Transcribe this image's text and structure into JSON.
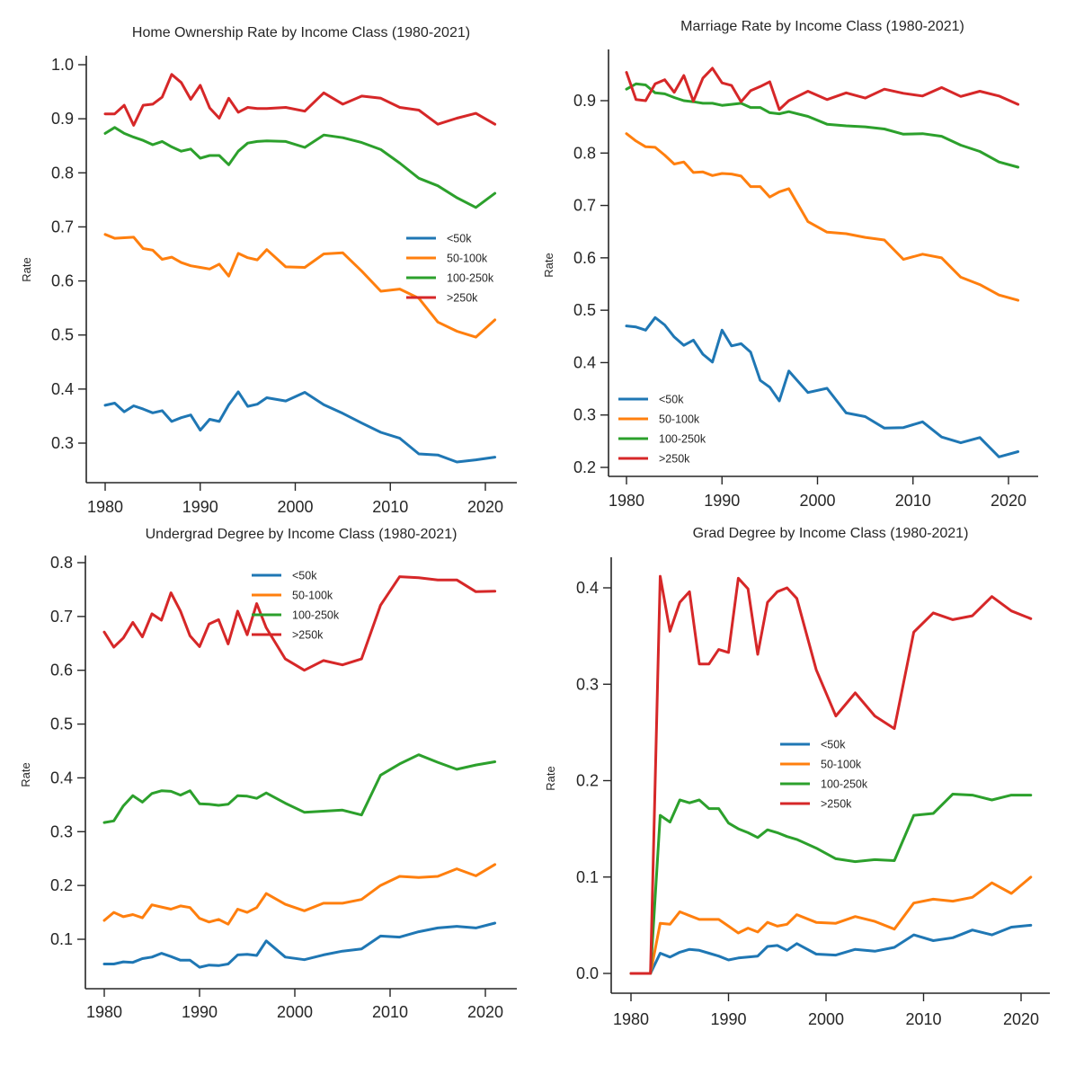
{
  "chart_data": [
    {
      "type": "line",
      "title": "Home Ownership Rate by Income Class (1980-2021)",
      "xlabel": "",
      "ylabel": "Rate",
      "xticks": [
        1980,
        1990,
        2000,
        2010,
        2020
      ],
      "yticks": [
        "0.3",
        "0.4",
        "0.5",
        "0.6",
        "0.7",
        "0.8",
        "0.9",
        "1.0"
      ],
      "legend_position": "center-right",
      "x": [
        1980,
        1981,
        1982,
        1983,
        1984,
        1985,
        1986,
        1987,
        1988,
        1989,
        1990,
        1991,
        1992,
        1993,
        1994,
        1995,
        1996,
        1997,
        1999,
        2001,
        2003,
        2005,
        2007,
        2009,
        2011,
        2013,
        2015,
        2017,
        2019,
        2021
      ],
      "series": [
        {
          "name": "<50k",
          "color": "#1f77b4",
          "values": [
            0.37,
            0.374,
            0.358,
            0.369,
            0.363,
            0.356,
            0.36,
            0.34,
            0.347,
            0.352,
            0.324,
            0.344,
            0.34,
            0.371,
            0.395,
            0.368,
            0.372,
            0.384,
            0.378,
            0.394,
            0.371,
            0.355,
            0.337,
            0.32,
            0.309,
            0.28,
            0.278,
            0.265,
            0.269,
            0.274
          ]
        },
        {
          "name": "50-100k",
          "color": "#ff7f0e",
          "values": [
            0.686,
            0.679,
            0.68,
            0.681,
            0.66,
            0.657,
            0.64,
            0.644,
            0.634,
            0.628,
            0.625,
            0.622,
            0.631,
            0.609,
            0.651,
            0.643,
            0.639,
            0.658,
            0.626,
            0.625,
            0.65,
            0.652,
            0.618,
            0.581,
            0.585,
            0.568,
            0.524,
            0.507,
            0.496,
            0.528
          ]
        },
        {
          "name": "100-250k",
          "color": "#2ca02c",
          "values": [
            0.873,
            0.884,
            0.873,
            0.866,
            0.86,
            0.852,
            0.858,
            0.848,
            0.84,
            0.844,
            0.827,
            0.832,
            0.832,
            0.815,
            0.84,
            0.855,
            0.858,
            0.859,
            0.858,
            0.847,
            0.87,
            0.865,
            0.856,
            0.843,
            0.818,
            0.79,
            0.776,
            0.754,
            0.736,
            0.762
          ]
        },
        {
          "name": ">250k",
          "color": "#d62728",
          "values": [
            0.909,
            0.909,
            0.925,
            0.888,
            0.925,
            0.927,
            0.94,
            0.982,
            0.967,
            0.936,
            0.962,
            0.92,
            0.901,
            0.938,
            0.912,
            0.921,
            0.919,
            0.919,
            0.921,
            0.914,
            0.948,
            0.927,
            0.942,
            0.938,
            0.921,
            0.916,
            0.89,
            0.901,
            0.91,
            0.89
          ]
        }
      ]
    },
    {
      "type": "line",
      "title": "Marriage Rate by Income Class (1980-2021)",
      "xlabel": "",
      "ylabel": "Rate",
      "xticks": [
        1980,
        1990,
        2000,
        2010,
        2020
      ],
      "yticks": [
        "0.2",
        "0.3",
        "0.4",
        "0.5",
        "0.6",
        "0.7",
        "0.8",
        "0.9"
      ],
      "legend_position": "lower-left",
      "x": [
        1980,
        1981,
        1982,
        1983,
        1984,
        1985,
        1986,
        1987,
        1988,
        1989,
        1990,
        1991,
        1992,
        1993,
        1994,
        1995,
        1996,
        1997,
        1999,
        2001,
        2003,
        2005,
        2007,
        2009,
        2011,
        2013,
        2015,
        2017,
        2019,
        2021
      ],
      "series": [
        {
          "name": "<50k",
          "color": "#1f77b4",
          "values": [
            0.47,
            0.468,
            0.462,
            0.486,
            0.472,
            0.449,
            0.433,
            0.443,
            0.416,
            0.401,
            0.462,
            0.432,
            0.436,
            0.42,
            0.366,
            0.353,
            0.327,
            0.384,
            0.343,
            0.351,
            0.304,
            0.297,
            0.275,
            0.276,
            0.287,
            0.258,
            0.247,
            0.257,
            0.22,
            0.23
          ]
        },
        {
          "name": "50-100k",
          "color": "#ff7f0e",
          "values": [
            0.837,
            0.823,
            0.812,
            0.811,
            0.796,
            0.779,
            0.783,
            0.763,
            0.764,
            0.757,
            0.761,
            0.76,
            0.756,
            0.736,
            0.736,
            0.716,
            0.726,
            0.732,
            0.669,
            0.649,
            0.646,
            0.639,
            0.634,
            0.597,
            0.607,
            0.6,
            0.563,
            0.549,
            0.529,
            0.519
          ]
        },
        {
          "name": "100-250k",
          "color": "#2ca02c",
          "values": [
            0.922,
            0.932,
            0.93,
            0.915,
            0.913,
            0.906,
            0.9,
            0.898,
            0.895,
            0.895,
            0.891,
            0.893,
            0.895,
            0.887,
            0.887,
            0.877,
            0.875,
            0.879,
            0.87,
            0.855,
            0.852,
            0.85,
            0.846,
            0.836,
            0.837,
            0.832,
            0.815,
            0.803,
            0.783,
            0.773
          ]
        },
        {
          "name": ">250k",
          "color": "#d62728",
          "values": [
            0.954,
            0.902,
            0.9,
            0.932,
            0.94,
            0.916,
            0.948,
            0.899,
            0.943,
            0.962,
            0.934,
            0.929,
            0.898,
            0.919,
            0.927,
            0.936,
            0.883,
            0.9,
            0.918,
            0.902,
            0.915,
            0.905,
            0.922,
            0.914,
            0.909,
            0.925,
            0.908,
            0.918,
            0.909,
            0.893
          ]
        }
      ]
    },
    {
      "type": "line",
      "title": "Undergrad Degree by Income Class (1980-2021)",
      "xlabel": "",
      "ylabel": "Rate",
      "xticks": [
        1980,
        1990,
        2000,
        2010,
        2020
      ],
      "yticks": [
        "0.1",
        "0.2",
        "0.3",
        "0.4",
        "0.5",
        "0.6",
        "0.7",
        "0.8"
      ],
      "legend_position": "upper-center",
      "x": [
        1980,
        1981,
        1982,
        1983,
        1984,
        1985,
        1986,
        1987,
        1988,
        1989,
        1990,
        1991,
        1992,
        1993,
        1994,
        1995,
        1996,
        1997,
        1999,
        2001,
        2003,
        2005,
        2007,
        2009,
        2011,
        2013,
        2015,
        2017,
        2019,
        2021
      ],
      "series": [
        {
          "name": "<50k",
          "color": "#1f77b4",
          "values": [
            0.054,
            0.054,
            0.058,
            0.057,
            0.064,
            0.067,
            0.074,
            0.068,
            0.061,
            0.061,
            0.048,
            0.052,
            0.051,
            0.054,
            0.071,
            0.072,
            0.07,
            0.097,
            0.067,
            0.062,
            0.071,
            0.078,
            0.082,
            0.106,
            0.104,
            0.114,
            0.121,
            0.124,
            0.121,
            0.13
          ]
        },
        {
          "name": "50-100k",
          "color": "#ff7f0e",
          "values": [
            0.135,
            0.15,
            0.142,
            0.146,
            0.14,
            0.164,
            0.16,
            0.156,
            0.162,
            0.159,
            0.139,
            0.132,
            0.137,
            0.128,
            0.156,
            0.15,
            0.159,
            0.185,
            0.165,
            0.153,
            0.167,
            0.167,
            0.174,
            0.2,
            0.217,
            0.215,
            0.217,
            0.231,
            0.218,
            0.239
          ]
        },
        {
          "name": "100-250k",
          "color": "#2ca02c",
          "values": [
            0.317,
            0.32,
            0.348,
            0.367,
            0.355,
            0.371,
            0.376,
            0.375,
            0.368,
            0.376,
            0.352,
            0.351,
            0.349,
            0.351,
            0.367,
            0.366,
            0.362,
            0.372,
            0.353,
            0.336,
            0.338,
            0.34,
            0.331,
            0.405,
            0.426,
            0.443,
            0.429,
            0.416,
            0.424,
            0.43
          ]
        },
        {
          "name": ">250k",
          "color": "#d62728",
          "values": [
            0.671,
            0.643,
            0.66,
            0.689,
            0.662,
            0.705,
            0.693,
            0.744,
            0.71,
            0.664,
            0.644,
            0.686,
            0.694,
            0.649,
            0.71,
            0.666,
            0.724,
            0.679,
            0.621,
            0.6,
            0.618,
            0.61,
            0.621,
            0.721,
            0.774,
            0.772,
            0.768,
            0.768,
            0.746,
            0.747
          ]
        }
      ]
    },
    {
      "type": "line",
      "title": "Grad Degree by Income Class (1980-2021)",
      "xlabel": "",
      "ylabel": "Rate",
      "xticks": [
        1980,
        1990,
        2000,
        2010,
        2020
      ],
      "yticks": [
        "0.0",
        "0.1",
        "0.2",
        "0.3",
        "0.4"
      ],
      "legend_position": "center",
      "x": [
        1980,
        1981,
        1982,
        1983,
        1984,
        1985,
        1986,
        1987,
        1988,
        1989,
        1990,
        1991,
        1992,
        1993,
        1994,
        1995,
        1996,
        1997,
        1999,
        2001,
        2003,
        2005,
        2007,
        2009,
        2011,
        2013,
        2015,
        2017,
        2019,
        2021
      ],
      "series": [
        {
          "name": "<50k",
          "color": "#1f77b4",
          "values": [
            0,
            0,
            0,
            0.021,
            0.017,
            0.022,
            0.025,
            0.024,
            0.021,
            0.018,
            0.014,
            0.016,
            0.017,
            0.018,
            0.028,
            0.029,
            0.024,
            0.031,
            0.02,
            0.019,
            0.025,
            0.023,
            0.027,
            0.04,
            0.034,
            0.037,
            0.045,
            0.04,
            0.048,
            0.05
          ]
        },
        {
          "name": "50-100k",
          "color": "#ff7f0e",
          "values": [
            0,
            0,
            0,
            0.052,
            0.051,
            0.064,
            0.06,
            0.056,
            0.056,
            0.056,
            0.049,
            0.042,
            0.047,
            0.043,
            0.053,
            0.049,
            0.051,
            0.061,
            0.053,
            0.052,
            0.059,
            0.054,
            0.046,
            0.073,
            0.077,
            0.075,
            0.079,
            0.094,
            0.083,
            0.1
          ]
        },
        {
          "name": "100-250k",
          "color": "#2ca02c",
          "values": [
            0,
            0,
            0,
            0.164,
            0.157,
            0.18,
            0.177,
            0.18,
            0.171,
            0.171,
            0.156,
            0.15,
            0.146,
            0.141,
            0.149,
            0.146,
            0.142,
            0.139,
            0.13,
            0.119,
            0.116,
            0.118,
            0.117,
            0.164,
            0.166,
            0.186,
            0.185,
            0.18,
            0.185,
            0.185
          ]
        },
        {
          "name": ">250k",
          "color": "#d62728",
          "values": [
            0,
            0,
            0,
            0.412,
            0.355,
            0.385,
            0.396,
            0.321,
            0.321,
            0.336,
            0.333,
            0.41,
            0.399,
            0.331,
            0.385,
            0.396,
            0.4,
            0.389,
            0.315,
            0.267,
            0.291,
            0.267,
            0.254,
            0.354,
            0.374,
            0.367,
            0.371,
            0.391,
            0.376,
            0.368
          ]
        }
      ]
    }
  ]
}
